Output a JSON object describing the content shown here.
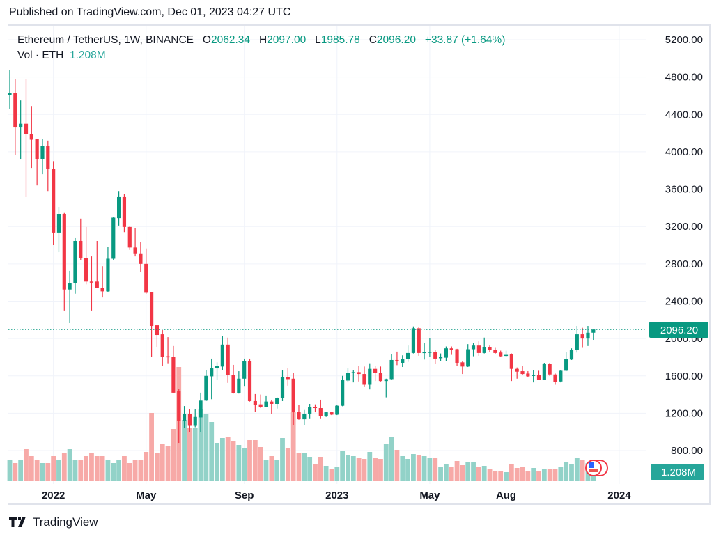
{
  "published": "Published on TradingView.com, Dec 01, 2023 04:27 UTC",
  "legend": {
    "symbol": "Ethereum / TetherUS, 1W, BINANCE",
    "o_label": "O",
    "o": "2062.34",
    "h_label": "H",
    "h": "2097.00",
    "l_label": "L",
    "l": "1985.78",
    "c_label": "C",
    "c": "2096.20",
    "change": "+33.87 (+1.64%)",
    "vol_label": "Vol · ETH",
    "vol": "1.208M"
  },
  "price_badge": "2096.20",
  "volume_badge": "1.208M",
  "footer": {
    "brand": "TradingView"
  },
  "colors": {
    "up": "#089981",
    "down": "#F23645",
    "vol_up": "#92d2c8",
    "vol_down": "#f7a9a7",
    "grid": "#f0f3fa"
  },
  "chart_data": {
    "type": "candlestick",
    "title": "Ethereum / TetherUS, 1W, BINANCE",
    "x_ticks": [
      "2022",
      "May",
      "Sep",
      "2023",
      "May",
      "Aug",
      "2024"
    ],
    "x_tick_index": [
      8,
      25,
      43,
      60,
      77,
      91,
      112
    ],
    "y_ticks": [
      "5200.00",
      "4800.00",
      "4400.00",
      "4000.00",
      "3600.00",
      "3200.00",
      "2800.00",
      "2400.00",
      "2000.00",
      "1600.00",
      "1200.00",
      "800.00"
    ],
    "ylim": [
      800,
      5200
    ],
    "ohlcv_columns": [
      "open",
      "high",
      "low",
      "close",
      "volume_M"
    ],
    "ohlcv": [
      [
        4610,
        4872,
        4462,
        4630,
        1.5
      ],
      [
        4626,
        4775,
        3962,
        4260,
        1.25
      ],
      [
        4260,
        4550,
        3917,
        4300,
        1.5
      ],
      [
        4300,
        4780,
        3515,
        4190,
        2.25
      ],
      [
        4190,
        4490,
        3827,
        4130,
        1.75
      ],
      [
        4135,
        4140,
        3640,
        3920,
        1.5
      ],
      [
        3920,
        4140,
        3760,
        4060,
        1.25
      ],
      [
        4060,
        4120,
        3580,
        3815,
        1.25
      ],
      [
        3820,
        3900,
        3000,
        3135,
        1.75
      ],
      [
        3135,
        3410,
        2925,
        3335,
        1.5
      ],
      [
        3335,
        3345,
        2300,
        2525,
        2.0
      ],
      [
        2525,
        2725,
        2165,
        2590,
        2.25
      ],
      [
        2590,
        3075,
        2480,
        3045,
        1.5
      ],
      [
        3045,
        3285,
        2844,
        2865,
        1.5
      ],
      [
        2865,
        3195,
        2580,
        2610,
        1.75
      ],
      [
        2610,
        2880,
        2300,
        2605,
        2.0
      ],
      [
        2610,
        3045,
        2540,
        2545,
        1.75
      ],
      [
        2545,
        2775,
        2440,
        2505,
        1.75
      ],
      [
        2505,
        2985,
        2500,
        2855,
        1.5
      ],
      [
        2855,
        3300,
        2840,
        3295,
        1.25
      ],
      [
        3290,
        3580,
        3210,
        3515,
        1.5
      ],
      [
        3515,
        3550,
        3140,
        3195,
        1.75
      ],
      [
        3195,
        3200,
        2950,
        2975,
        1.25
      ],
      [
        2975,
        3180,
        2880,
        2905,
        1.5
      ],
      [
        2905,
        3035,
        2710,
        2800,
        1.5
      ],
      [
        2800,
        2965,
        2480,
        2490,
        2.05
      ],
      [
        2495,
        2500,
        1800,
        2135,
        4.85
      ],
      [
        2142,
        2150,
        1905,
        2038,
        2.0
      ],
      [
        2045,
        2090,
        1705,
        1807,
        2.6
      ],
      [
        1810,
        2015,
        1735,
        1805,
        2.5
      ],
      [
        1807,
        1920,
        1415,
        1420,
        3.7
      ],
      [
        1434,
        1460,
        882,
        1121,
        8.15
      ],
      [
        1121,
        1277,
        1046,
        1190,
        4.35
      ],
      [
        1190,
        1240,
        994,
        1065,
        3.8
      ],
      [
        1065,
        1240,
        1050,
        1160,
        3.8
      ],
      [
        1155,
        1420,
        1000,
        1335,
        5.15
      ],
      [
        1335,
        1665,
        1330,
        1600,
        4.75
      ],
      [
        1595,
        1785,
        1350,
        1680,
        4.2
      ],
      [
        1680,
        1745,
        1560,
        1705,
        2.7
      ],
      [
        1700,
        2030,
        1660,
        1935,
        3.05
      ],
      [
        1935,
        2010,
        1525,
        1610,
        3.15
      ],
      [
        1610,
        1718,
        1410,
        1415,
        2.85
      ],
      [
        1415,
        1650,
        1410,
        1570,
        2.55
      ],
      [
        1570,
        1785,
        1485,
        1755,
        2.35
      ],
      [
        1755,
        1785,
        1325,
        1330,
        2.9
      ],
      [
        1330,
        1405,
        1218,
        1290,
        2.9
      ],
      [
        1295,
        1400,
        1255,
        1270,
        2.4
      ],
      [
        1270,
        1390,
        1265,
        1325,
        1.5
      ],
      [
        1325,
        1340,
        1190,
        1300,
        1.75
      ],
      [
        1300,
        1370,
        1250,
        1360,
        1.5
      ],
      [
        1360,
        1665,
        1330,
        1590,
        3.05
      ],
      [
        1590,
        1680,
        1495,
        1565,
        2.3
      ],
      [
        1570,
        1630,
        1070,
        1210,
        4.9
      ],
      [
        1215,
        1290,
        1130,
        1135,
        2.0
      ],
      [
        1135,
        1235,
        1075,
        1190,
        1.95
      ],
      [
        1190,
        1300,
        1145,
        1270,
        1.7
      ],
      [
        1270,
        1295,
        1210,
        1255,
        1.2
      ],
      [
        1255,
        1345,
        1145,
        1170,
        1.7
      ],
      [
        1170,
        1215,
        1160,
        1210,
        1.05
      ],
      [
        1210,
        1215,
        1180,
        1185,
        0.85
      ],
      [
        1185,
        1290,
        1180,
        1280,
        1.0
      ],
      [
        1280,
        1600,
        1275,
        1555,
        2.15
      ],
      [
        1550,
        1680,
        1530,
        1630,
        1.8
      ],
      [
        1630,
        1660,
        1530,
        1640,
        1.75
      ],
      [
        1640,
        1710,
        1540,
        1620,
        1.65
      ],
      [
        1620,
        1700,
        1480,
        1505,
        1.55
      ],
      [
        1505,
        1735,
        1455,
        1675,
        2.05
      ],
      [
        1675,
        1710,
        1545,
        1630,
        1.6
      ],
      [
        1630,
        1700,
        1540,
        1545,
        1.55
      ],
      [
        1545,
        1570,
        1370,
        1565,
        2.65
      ],
      [
        1565,
        1835,
        1560,
        1770,
        3.15
      ],
      [
        1770,
        1860,
        1715,
        1765,
        2.2
      ],
      [
        1740,
        1820,
        1695,
        1780,
        1.75
      ],
      [
        1780,
        1925,
        1750,
        1845,
        1.55
      ],
      [
        1845,
        2130,
        1840,
        2110,
        1.9
      ],
      [
        2110,
        2125,
        1815,
        1845,
        1.85
      ],
      [
        1850,
        1955,
        1775,
        1855,
        1.75
      ],
      [
        1855,
        2005,
        1800,
        1858,
        1.65
      ],
      [
        1858,
        1875,
        1730,
        1785,
        1.6
      ],
      [
        1795,
        1840,
        1760,
        1800,
        1.0
      ],
      [
        1795,
        1915,
        1760,
        1895,
        1.15
      ],
      [
        1895,
        1915,
        1825,
        1875,
        0.95
      ],
      [
        1885,
        1890,
        1705,
        1740,
        1.4
      ],
      [
        1745,
        1760,
        1620,
        1700,
        1.1
      ],
      [
        1700,
        1940,
        1695,
        1885,
        1.35
      ],
      [
        1885,
        1950,
        1810,
        1925,
        1.35
      ],
      [
        1925,
        1970,
        1815,
        1845,
        0.95
      ],
      [
        1845,
        2010,
        1840,
        1910,
        1.05
      ],
      [
        1910,
        1925,
        1855,
        1875,
        0.8
      ],
      [
        1880,
        1900,
        1835,
        1845,
        0.7
      ],
      [
        1850,
        1870,
        1805,
        1810,
        0.7
      ],
      [
        1815,
        1870,
        1800,
        1825,
        0.6
      ],
      [
        1830,
        1840,
        1545,
        1675,
        1.2
      ],
      [
        1675,
        1690,
        1570,
        1645,
        0.9
      ],
      [
        1650,
        1705,
        1610,
        1620,
        0.95
      ],
      [
        1625,
        1650,
        1590,
        1595,
        0.7
      ],
      [
        1605,
        1660,
        1530,
        1610,
        0.9
      ],
      [
        1610,
        1655,
        1555,
        1560,
        0.7
      ],
      [
        1560,
        1740,
        1555,
        1725,
        0.8
      ],
      [
        1730,
        1740,
        1600,
        1615,
        0.8
      ],
      [
        1615,
        1625,
        1505,
        1535,
        0.8
      ],
      [
        1540,
        1660,
        1530,
        1655,
        0.95
      ],
      [
        1655,
        1855,
        1650,
        1780,
        1.35
      ],
      [
        1775,
        1895,
        1770,
        1880,
        1.15
      ],
      [
        1880,
        2135,
        1850,
        2045,
        1.65
      ],
      [
        2045,
        2115,
        1900,
        2000,
        1.5
      ],
      [
        2000,
        2135,
        1920,
        2062,
        1.25
      ],
      [
        2062.34,
        2097,
        1985.78,
        2096.2,
        1.208
      ]
    ],
    "last_price": 2096.2,
    "last_volume": "1.208M"
  }
}
